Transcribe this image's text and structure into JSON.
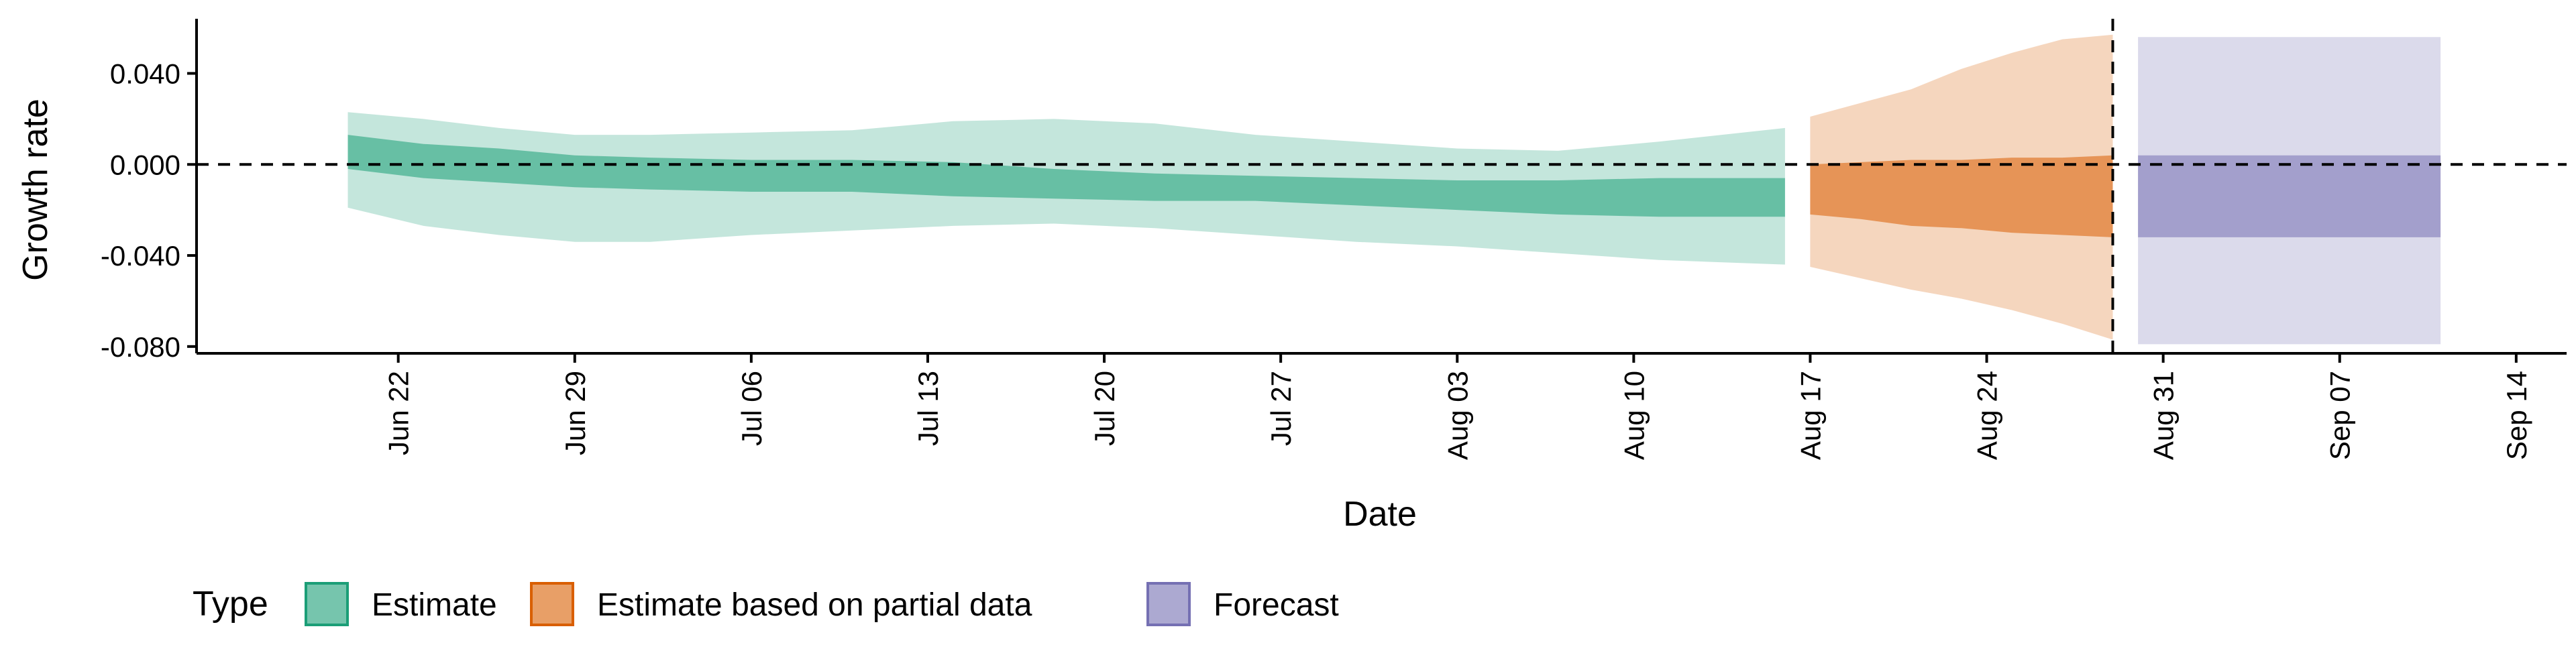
{
  "chart_data": {
    "type": "area",
    "xlabel": "Date",
    "ylabel": "Growth rate",
    "xlim": [
      "2020-06-14",
      "2020-09-16"
    ],
    "ylim": [
      -0.083,
      0.064
    ],
    "y_ticks": [
      0.04,
      0.0,
      -0.04,
      -0.08
    ],
    "y_tick_labels": [
      "0.040",
      "0.000",
      "-0.040",
      "-0.080"
    ],
    "x_ticks": [
      "2020-06-22",
      "2020-06-29",
      "2020-07-06",
      "2020-07-13",
      "2020-07-20",
      "2020-07-27",
      "2020-08-03",
      "2020-08-10",
      "2020-08-17",
      "2020-08-24",
      "2020-08-31",
      "2020-09-07",
      "2020-09-14"
    ],
    "x_tick_labels": [
      "Jun 22",
      "Jun 29",
      "Jul 06",
      "Jul 13",
      "Jul 20",
      "Jul 27",
      "Aug 03",
      "Aug 10",
      "Aug 17",
      "Aug 24",
      "Aug 31",
      "Sep 07",
      "Sep 14"
    ],
    "reference_lines": {
      "horizontal_y": 0.0,
      "vertical_date": "2020-08-29",
      "style": "dashed"
    },
    "grid": false,
    "legend": {
      "title": "Type",
      "position": "bottom-left",
      "entries": [
        {
          "label": "Estimate",
          "color": "#1b9e77"
        },
        {
          "label": "Estimate based on partial data",
          "color": "#d95f02"
        },
        {
          "label": "Forecast",
          "color": "#7570b3"
        }
      ]
    },
    "series": [
      {
        "name": "Estimate",
        "color": "#1b9e77",
        "x": [
          "2020-06-20",
          "2020-06-23",
          "2020-06-26",
          "2020-06-29",
          "2020-07-02",
          "2020-07-06",
          "2020-07-10",
          "2020-07-14",
          "2020-07-18",
          "2020-07-22",
          "2020-07-26",
          "2020-07-30",
          "2020-08-03",
          "2020-08-07",
          "2020-08-11",
          "2020-08-16"
        ],
        "lower90": [
          -0.019,
          -0.027,
          -0.031,
          -0.034,
          -0.034,
          -0.031,
          -0.029,
          -0.027,
          -0.026,
          -0.028,
          -0.031,
          -0.034,
          -0.036,
          -0.039,
          -0.042,
          -0.044
        ],
        "lower50": [
          -0.002,
          -0.006,
          -0.008,
          -0.01,
          -0.011,
          -0.012,
          -0.012,
          -0.014,
          -0.015,
          -0.016,
          -0.016,
          -0.018,
          -0.02,
          -0.022,
          -0.023,
          -0.023
        ],
        "upper50": [
          0.013,
          0.009,
          0.007,
          0.004,
          0.003,
          0.002,
          0.002,
          0.001,
          -0.002,
          -0.004,
          -0.005,
          -0.006,
          -0.007,
          -0.007,
          -0.006,
          -0.006
        ],
        "upper90": [
          0.023,
          0.02,
          0.016,
          0.013,
          0.013,
          0.014,
          0.015,
          0.019,
          0.02,
          0.018,
          0.013,
          0.01,
          0.007,
          0.006,
          0.01,
          0.016
        ]
      },
      {
        "name": "Estimate based on partial data",
        "color": "#d95f02",
        "x": [
          "2020-08-17",
          "2020-08-19",
          "2020-08-21",
          "2020-08-23",
          "2020-08-25",
          "2020-08-27",
          "2020-08-29"
        ],
        "lower90": [
          -0.045,
          -0.05,
          -0.055,
          -0.059,
          -0.064,
          -0.07,
          -0.077
        ],
        "lower50": [
          -0.022,
          -0.024,
          -0.027,
          -0.028,
          -0.03,
          -0.031,
          -0.032
        ],
        "upper50": [
          0.0,
          0.001,
          0.002,
          0.002,
          0.003,
          0.003,
          0.004
        ],
        "upper90": [
          0.021,
          0.027,
          0.033,
          0.042,
          0.049,
          0.055,
          0.057
        ]
      },
      {
        "name": "Forecast",
        "color": "#7570b3",
        "x": [
          "2020-08-30",
          "2020-09-11"
        ],
        "lower90": [
          -0.079,
          -0.079
        ],
        "lower50": [
          -0.032,
          -0.032
        ],
        "upper50": [
          0.004,
          0.004
        ],
        "upper90": [
          0.056,
          0.056
        ]
      }
    ]
  }
}
